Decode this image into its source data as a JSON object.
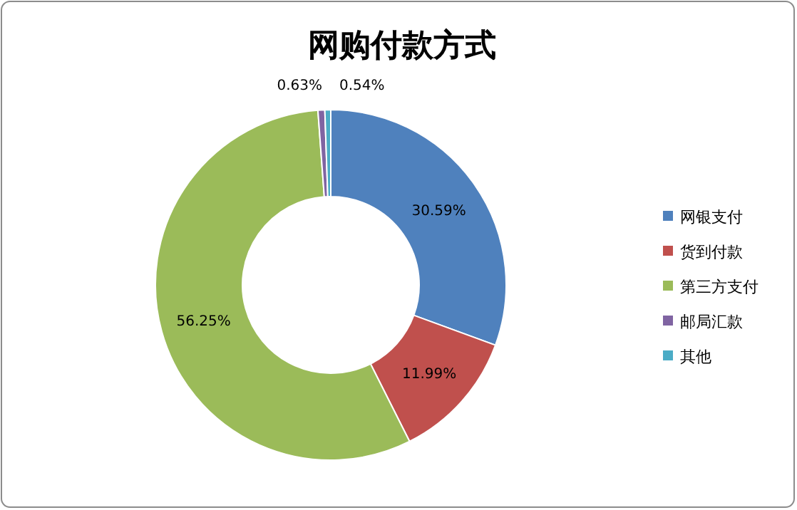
{
  "chart_data": {
    "type": "donut",
    "title": "网购付款方式",
    "categories": [
      "网银支付",
      "货到付款",
      "第三方支付",
      "邮局汇款",
      "其他"
    ],
    "values": [
      30.59,
      11.99,
      56.25,
      0.63,
      0.54
    ],
    "value_labels": [
      "30.59%",
      "11.99%",
      "56.25%",
      "0.63%",
      "0.54%"
    ],
    "colors": [
      "#4f81bd",
      "#c0504d",
      "#9bbb59",
      "#8064a2",
      "#4bacc6"
    ],
    "legend": "right"
  }
}
